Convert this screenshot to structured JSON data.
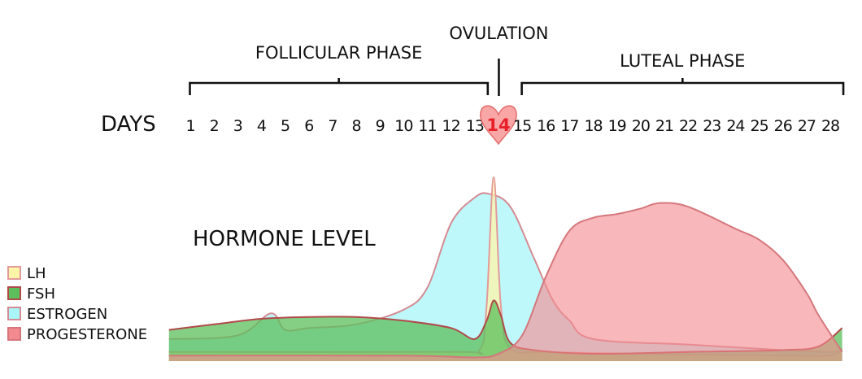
{
  "chart_data": {
    "type": "area",
    "xlabel": "DAYS",
    "ylabel": "HORMONE LEVEL",
    "x": [
      1,
      2,
      3,
      4,
      5,
      6,
      7,
      8,
      9,
      10,
      11,
      12,
      13,
      14,
      15,
      16,
      17,
      18,
      19,
      20,
      21,
      22,
      23,
      24,
      25,
      26,
      27,
      28
    ],
    "xlim": [
      0.1,
      28.5
    ],
    "ylim": [
      0,
      100
    ],
    "highlight_day": "14",
    "phases": [
      {
        "name": "FOLLICULAR PHASE",
        "start": 1,
        "end": 13
      },
      {
        "name": "OVULATION",
        "start": 14,
        "end": 14
      },
      {
        "name": "LUTEAL PHASE",
        "start": 15,
        "end": 28
      }
    ],
    "legend_position": "left",
    "series": [
      {
        "name": "LH",
        "color": "#fff5a8",
        "stroke": "#e39a9a",
        "points": [
          [
            0.1,
            5
          ],
          [
            12,
            5
          ],
          [
            13.2,
            6
          ],
          [
            13.5,
            30
          ],
          [
            13.8,
            100
          ],
          [
            14.1,
            30
          ],
          [
            14.5,
            7
          ],
          [
            16,
            5
          ],
          [
            20,
            4
          ],
          [
            26,
            3
          ],
          [
            28,
            3
          ],
          [
            28.5,
            7
          ]
        ]
      },
      {
        "name": "FSH",
        "color": "#5cbf5c",
        "stroke": "#b14a4a",
        "points": [
          [
            0.1,
            17
          ],
          [
            2,
            20
          ],
          [
            4,
            23
          ],
          [
            6,
            24
          ],
          [
            8,
            24
          ],
          [
            10,
            22
          ],
          [
            12,
            18
          ],
          [
            13,
            12
          ],
          [
            13.5,
            22
          ],
          [
            13.8,
            33
          ],
          [
            14.1,
            25
          ],
          [
            14.5,
            10
          ],
          [
            15.5,
            6
          ],
          [
            18,
            4
          ],
          [
            22,
            5
          ],
          [
            26,
            6
          ],
          [
            27.5,
            8
          ],
          [
            28.5,
            18
          ]
        ]
      },
      {
        "name": "ESTROGEN",
        "color": "#aaf5f8",
        "stroke": "#d48c94",
        "points": [
          [
            0.1,
            12
          ],
          [
            3,
            14
          ],
          [
            4.4,
            26
          ],
          [
            5,
            17
          ],
          [
            6,
            18
          ],
          [
            8,
            20
          ],
          [
            10,
            28
          ],
          [
            11,
            40
          ],
          [
            12,
            75
          ],
          [
            13,
            89
          ],
          [
            13.6,
            91
          ],
          [
            14.5,
            84
          ],
          [
            15.5,
            56
          ],
          [
            16.3,
            33
          ],
          [
            17,
            22
          ],
          [
            18,
            12
          ],
          [
            22,
            9
          ],
          [
            26,
            6
          ],
          [
            28,
            5
          ],
          [
            28.5,
            6
          ]
        ]
      },
      {
        "name": "PROGESTERONE",
        "color": "#f38a90",
        "stroke": "#d4777c",
        "points": [
          [
            0.1,
            3
          ],
          [
            10,
            3
          ],
          [
            13,
            2
          ],
          [
            14,
            4
          ],
          [
            15,
            14
          ],
          [
            16,
            46
          ],
          [
            17,
            71
          ],
          [
            18,
            78
          ],
          [
            19,
            80
          ],
          [
            20,
            83
          ],
          [
            20.8,
            86
          ],
          [
            22,
            84
          ],
          [
            24,
            72
          ],
          [
            25,
            66
          ],
          [
            26,
            55
          ],
          [
            27,
            37
          ],
          [
            27.5,
            25
          ],
          [
            28.5,
            5
          ]
        ]
      }
    ]
  }
}
